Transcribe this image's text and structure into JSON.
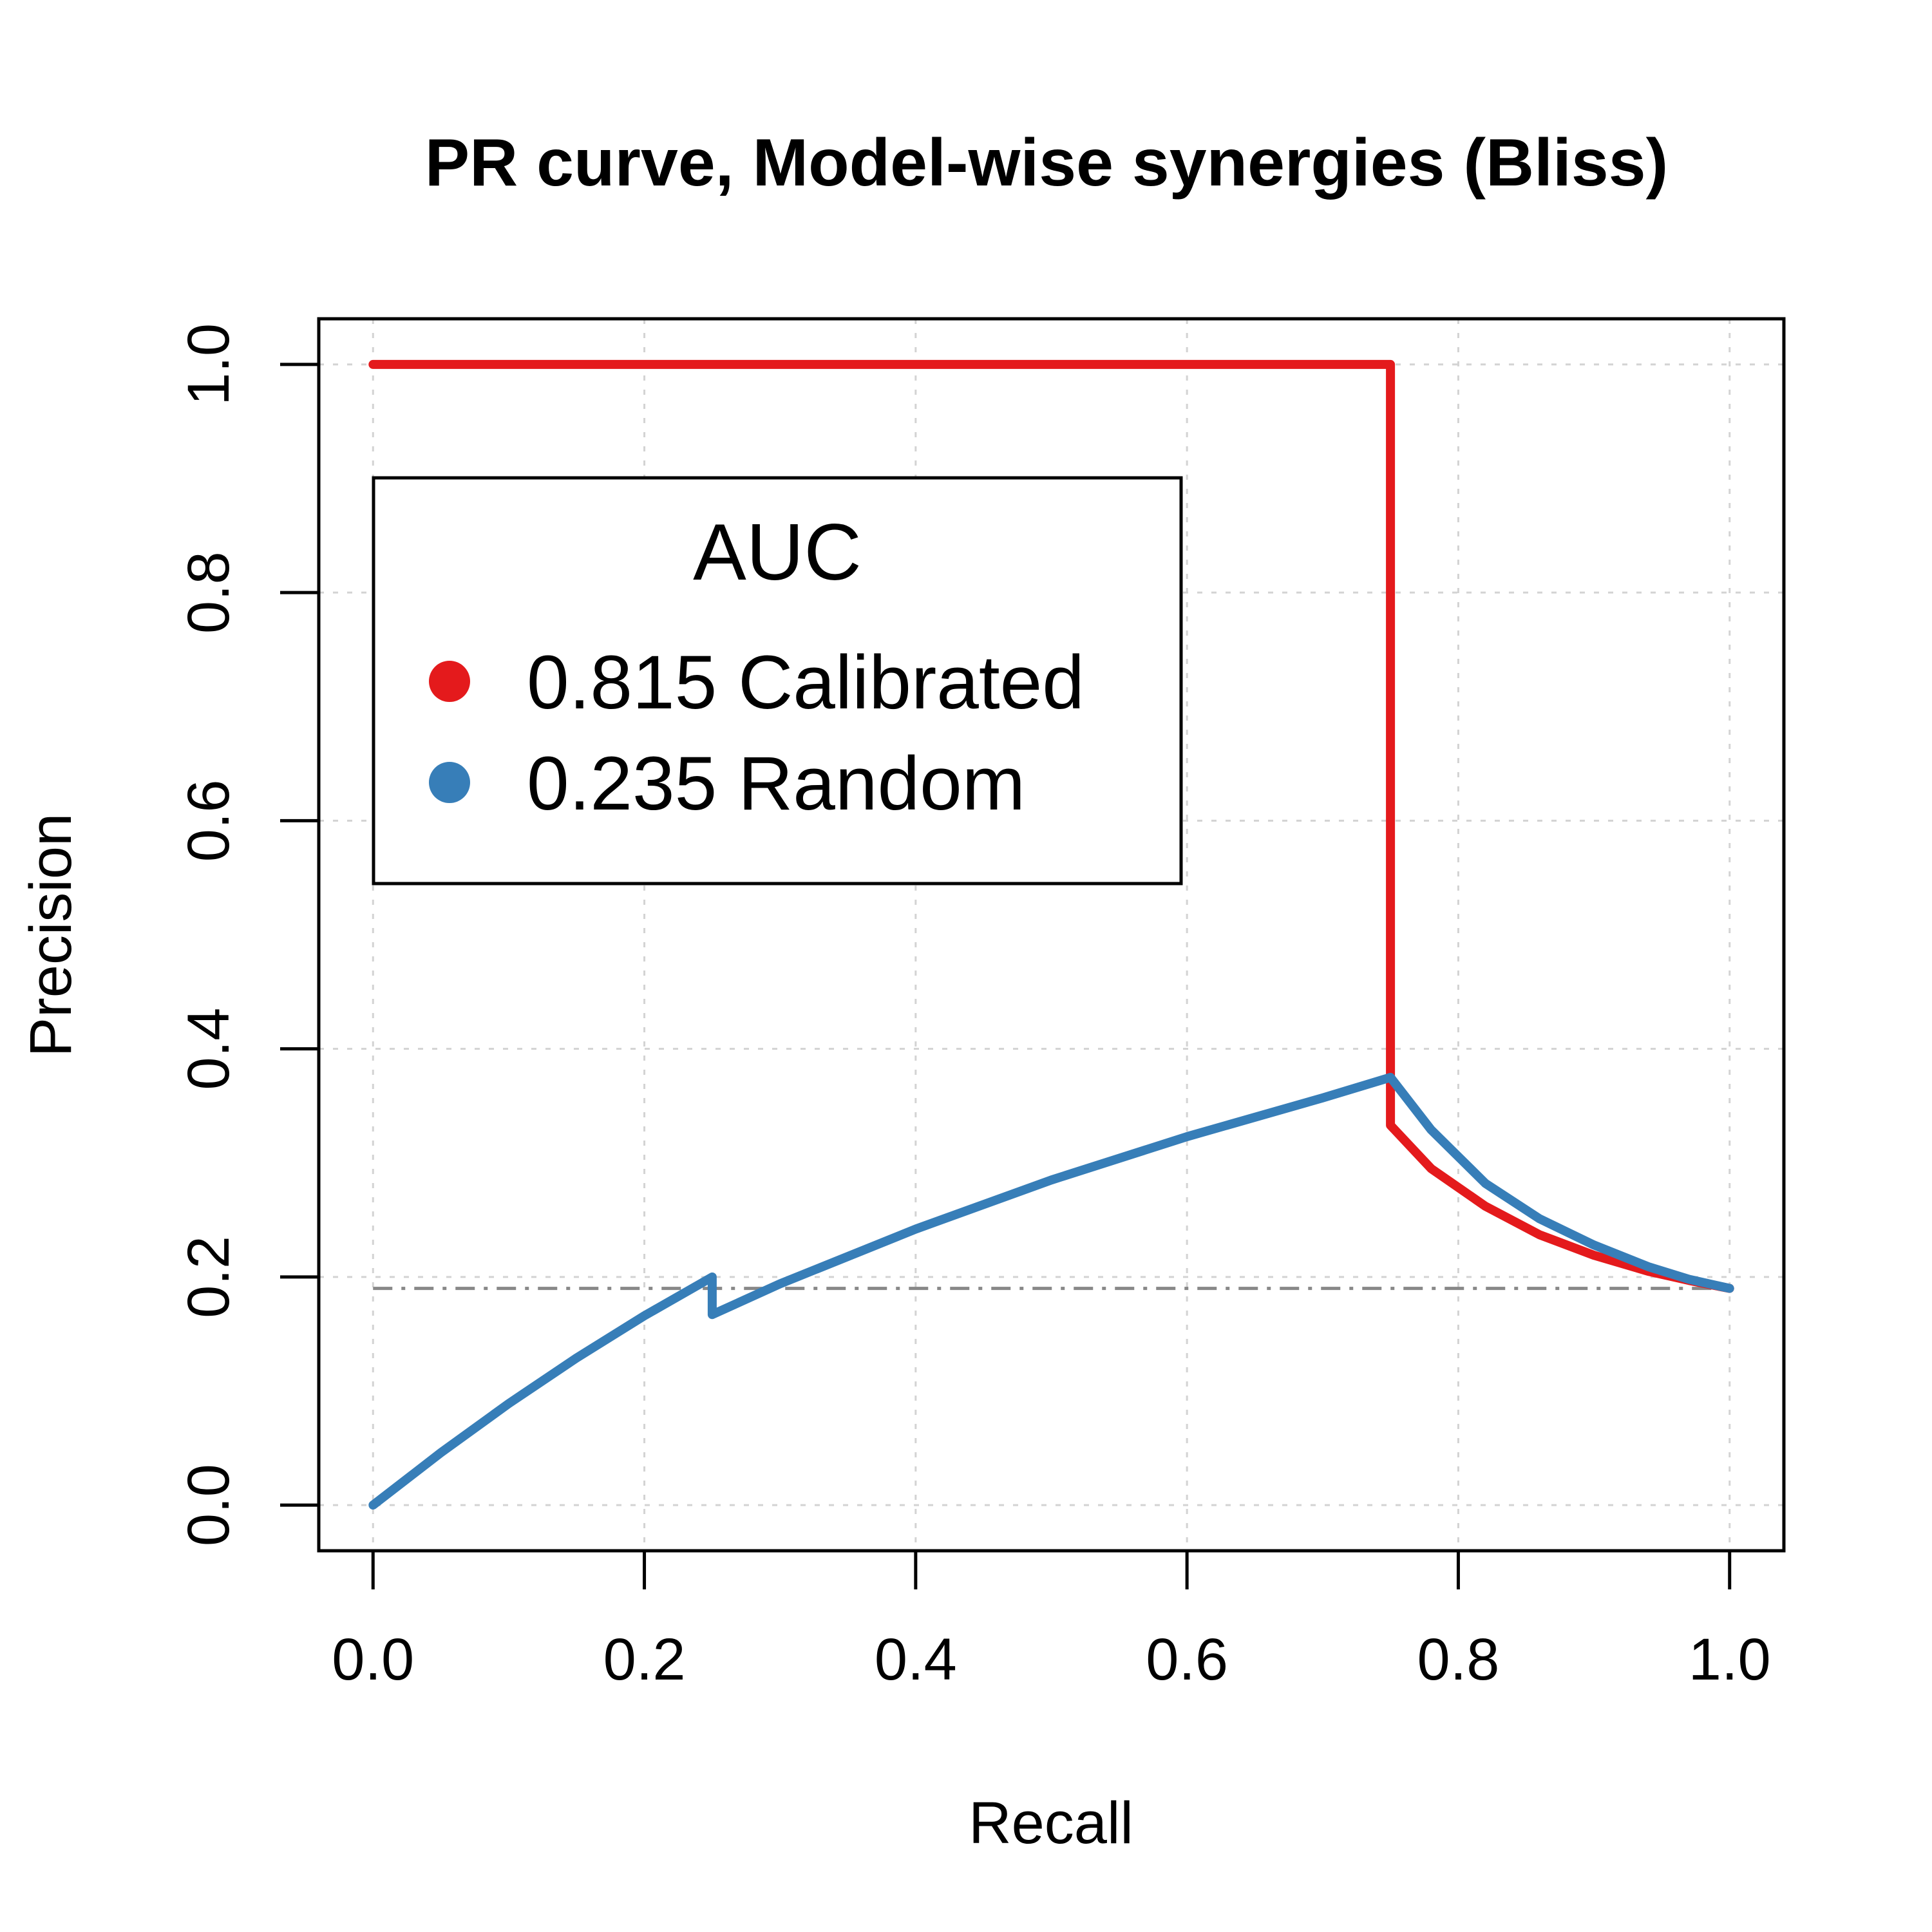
{
  "chart_data": {
    "type": "line",
    "title": "PR curve, Model-wise synergies (Bliss)",
    "xlabel": "Recall",
    "ylabel": "Precision",
    "xlim": [
      -0.04,
      1.04
    ],
    "ylim": [
      -0.04,
      1.04
    ],
    "xticks": [
      0.0,
      0.2,
      0.4,
      0.6,
      0.8,
      1.0
    ],
    "yticks": [
      0.0,
      0.2,
      0.4,
      0.6,
      0.8,
      1.0
    ],
    "xtick_labels": [
      "0.0",
      "0.2",
      "0.4",
      "0.6",
      "0.8",
      "1.0"
    ],
    "ytick_labels": [
      "0.0",
      "0.2",
      "0.4",
      "0.6",
      "0.8",
      "1.0"
    ],
    "grid": true,
    "legend": {
      "title": "AUC",
      "position": "top-left",
      "entries": [
        {
          "label": "0.815 Calibrated",
          "color": "#e41a1c"
        },
        {
          "label": "0.235 Random",
          "color": "#377eb8"
        }
      ]
    },
    "series": [
      {
        "color": "#e41a1c",
        "x": [
          0.0,
          0.25,
          0.5,
          0.75,
          0.75,
          0.78,
          0.82,
          0.86,
          0.9,
          0.94,
          0.97,
          1.0
        ],
        "y": [
          1.0,
          1.0,
          1.0,
          1.0,
          0.333,
          0.295,
          0.262,
          0.237,
          0.219,
          0.205,
          0.197,
          0.19
        ]
      },
      {
        "color": "#377eb8",
        "x": [
          0.0,
          0.05,
          0.1,
          0.15,
          0.2,
          0.25,
          0.25,
          0.3,
          0.4,
          0.5,
          0.6,
          0.7,
          0.75,
          0.78,
          0.82,
          0.86,
          0.9,
          0.94,
          0.97,
          1.0
        ],
        "y": [
          0.0,
          0.046,
          0.089,
          0.129,
          0.166,
          0.2,
          0.167,
          0.194,
          0.242,
          0.285,
          0.323,
          0.357,
          0.375,
          0.329,
          0.282,
          0.251,
          0.228,
          0.209,
          0.198,
          0.19
        ]
      }
    ],
    "baseline": {
      "y": 0.19,
      "color": "#888888",
      "style": "dash-dot"
    }
  }
}
